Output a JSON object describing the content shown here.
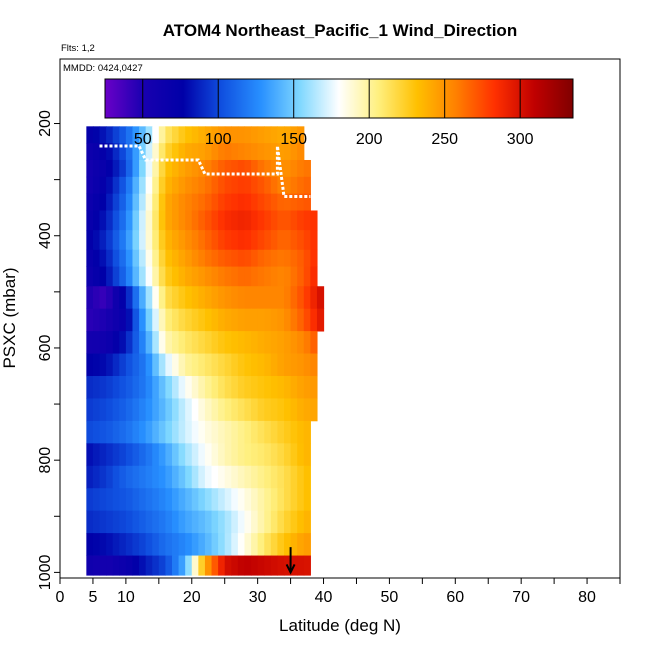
{
  "chart_data": {
    "type": "heatmap",
    "title": "ATOM4 Northeast_Pacific_1 Wind_Direction",
    "flights_label": "Flts: 1,2",
    "dates_label": "MMDD: 0424,0427",
    "xlabel": "Latitude (deg N)",
    "ylabel": "PSXC (mbar)",
    "xlim": [
      0,
      85
    ],
    "ylim": [
      1010,
      85
    ],
    "x_ticks": [
      0,
      5,
      10,
      20,
      30,
      40,
      50,
      60,
      70,
      80
    ],
    "x_minor_ticks": [
      15,
      25,
      35,
      45,
      55,
      65,
      75,
      85
    ],
    "y_ticks": [
      200,
      400,
      600,
      800,
      1000
    ],
    "y_minor_ticks": [
      300,
      500,
      700,
      900
    ],
    "colorbar": {
      "ticks": [
        50,
        100,
        150,
        200,
        250,
        300
      ],
      "range": [
        25,
        335
      ],
      "colors": [
        "#6a00c8",
        "#1800b0",
        "#0000a8",
        "#1050e0",
        "#2890ff",
        "#80d8ff",
        "#ffffff",
        "#fff080",
        "#ffc000",
        "#ff8000",
        "#ff3000",
        "#c00000",
        "#800000"
      ],
      "dividers": [
        50,
        100,
        150,
        200,
        250,
        300
      ]
    },
    "pressure_levels": [
      220,
      250,
      280,
      310,
      340,
      370,
      410,
      440,
      470,
      510,
      550,
      590,
      630,
      670,
      710,
      750,
      790,
      830,
      870,
      910,
      950,
      990
    ],
    "lat_ranges": [
      [
        4,
        37
      ],
      [
        4,
        37
      ],
      [
        4,
        38
      ],
      [
        4,
        38
      ],
      [
        4,
        38
      ],
      [
        4,
        39
      ],
      [
        4,
        39
      ],
      [
        4,
        39
      ],
      [
        4,
        39
      ],
      [
        4,
        40
      ],
      [
        4,
        40
      ],
      [
        4,
        39
      ],
      [
        4,
        39
      ],
      [
        4,
        39
      ],
      [
        4,
        39
      ],
      [
        4,
        38
      ],
      [
        4,
        38
      ],
      [
        4,
        38
      ],
      [
        4,
        38
      ],
      [
        4,
        38
      ],
      [
        4,
        38
      ],
      [
        4,
        38
      ]
    ],
    "lat_nodes": [
      4,
      7,
      10,
      13,
      16,
      19,
      22,
      25,
      28,
      31,
      34,
      37,
      40
    ],
    "wind_direction": [
      [
        70,
        85,
        110,
        150,
        210,
        230,
        240,
        250,
        250,
        245,
        240,
        250,
        255
      ],
      [
        60,
        75,
        105,
        160,
        220,
        240,
        245,
        260,
        255,
        250,
        245,
        255,
        260
      ],
      [
        55,
        70,
        100,
        165,
        230,
        245,
        255,
        270,
        275,
        260,
        250,
        260,
        265
      ],
      [
        55,
        75,
        110,
        170,
        235,
        250,
        260,
        275,
        280,
        270,
        255,
        265,
        270
      ],
      [
        60,
        80,
        115,
        175,
        240,
        255,
        265,
        280,
        285,
        275,
        265,
        270,
        275
      ],
      [
        65,
        85,
        120,
        180,
        240,
        255,
        270,
        285,
        290,
        280,
        270,
        280,
        285
      ],
      [
        70,
        90,
        125,
        180,
        235,
        250,
        265,
        280,
        285,
        275,
        265,
        275,
        290
      ],
      [
        65,
        85,
        120,
        175,
        230,
        245,
        260,
        270,
        275,
        265,
        260,
        270,
        295
      ],
      [
        60,
        80,
        115,
        170,
        225,
        240,
        250,
        260,
        265,
        260,
        255,
        270,
        300
      ],
      [
        50,
        40,
        80,
        150,
        215,
        230,
        240,
        250,
        255,
        255,
        255,
        275,
        305
      ],
      [
        45,
        50,
        70,
        140,
        205,
        220,
        230,
        240,
        245,
        245,
        250,
        270,
        300
      ],
      [
        55,
        60,
        85,
        130,
        195,
        210,
        220,
        230,
        235,
        240,
        245,
        255,
        280
      ],
      [
        75,
        80,
        100,
        120,
        170,
        200,
        210,
        220,
        230,
        235,
        245,
        250,
        260
      ],
      [
        90,
        95,
        105,
        120,
        150,
        180,
        200,
        215,
        225,
        230,
        235,
        245,
        250
      ],
      [
        95,
        100,
        110,
        125,
        145,
        170,
        190,
        205,
        215,
        225,
        230,
        240,
        245
      ],
      [
        100,
        105,
        115,
        130,
        150,
        170,
        185,
        195,
        205,
        215,
        225,
        235,
        240
      ],
      [
        80,
        90,
        100,
        115,
        135,
        160,
        180,
        195,
        205,
        210,
        220,
        235,
        240
      ],
      [
        85,
        95,
        110,
        120,
        130,
        150,
        175,
        185,
        195,
        205,
        215,
        230,
        240
      ],
      [
        95,
        100,
        105,
        115,
        125,
        140,
        155,
        170,
        185,
        200,
        215,
        230,
        240
      ],
      [
        90,
        95,
        100,
        110,
        120,
        135,
        145,
        160,
        180,
        200,
        220,
        235,
        245
      ],
      [
        75,
        80,
        90,
        100,
        115,
        125,
        140,
        160,
        185,
        210,
        230,
        245,
        250
      ],
      [
        60,
        55,
        65,
        85,
        100,
        140,
        240,
        300,
        310,
        305,
        300,
        300,
        295
      ]
    ],
    "flight_tracks": [
      {
        "points": [
          [
            26,
            200
          ],
          [
            32,
            200
          ]
        ]
      },
      {
        "points": [
          [
            6,
            240
          ],
          [
            12,
            240
          ],
          [
            13,
            265
          ],
          [
            21,
            265
          ],
          [
            22,
            290
          ],
          [
            33,
            290
          ],
          [
            33,
            240
          ],
          [
            34,
            330
          ],
          [
            38,
            330
          ]
        ]
      }
    ],
    "marker_latitude": 35
  }
}
